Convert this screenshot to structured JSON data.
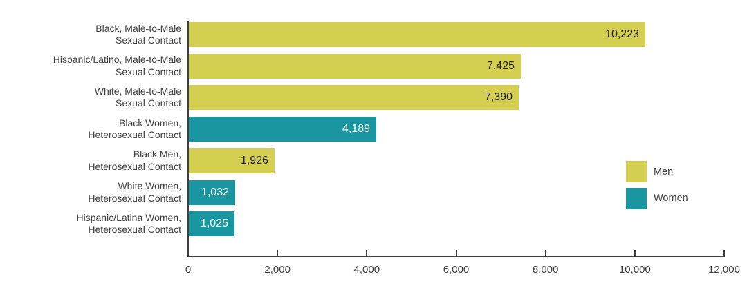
{
  "chart_data": {
    "type": "bar",
    "orientation": "horizontal",
    "title": "",
    "x_axis": {
      "min": 0,
      "max": 12000,
      "tick_interval": 2000,
      "tick_labels": [
        "0",
        "2,000",
        "4,000",
        "6,000",
        "8,000",
        "10,000",
        "12,000"
      ]
    },
    "legend": [
      {
        "label": "Men",
        "color": "#d4cf50"
      },
      {
        "label": "Women",
        "color": "#1a96a1"
      }
    ],
    "bars": [
      {
        "label_lines": [
          "Black, Male-to-Male",
          "Sexual Contact"
        ],
        "value": 10223,
        "display_value": "10,223",
        "group": "Men"
      },
      {
        "label_lines": [
          "Hispanic/Latino, Male-to-Male",
          "Sexual Contact"
        ],
        "value": 7425,
        "display_value": "7,425",
        "group": "Men"
      },
      {
        "label_lines": [
          "White, Male-to-Male",
          "Sexual Contact"
        ],
        "value": 7390,
        "display_value": "7,390",
        "group": "Men"
      },
      {
        "label_lines": [
          "Black Women,",
          "Heterosexual Contact"
        ],
        "value": 4189,
        "display_value": "4,189",
        "group": "Women"
      },
      {
        "label_lines": [
          "Black Men,",
          "Heterosexual Contact"
        ],
        "value": 1926,
        "display_value": "1,926",
        "group": "Men"
      },
      {
        "label_lines": [
          "White Women,",
          "Heterosexual Contact"
        ],
        "value": 1032,
        "display_value": "1,032",
        "group": "Women"
      },
      {
        "label_lines": [
          "Hispanic/Latina Women,",
          "Heterosexual Contact"
        ],
        "value": 1025,
        "display_value": "1,025",
        "group": "Women"
      }
    ],
    "colors": {
      "Men": "#d4cf50",
      "Women": "#1a96a1",
      "axis": "#3f3f3f",
      "category_text": "#3f3f3f",
      "value_text_on_men": "#1c1c1c",
      "value_text_on_women": "#ffffff"
    }
  }
}
